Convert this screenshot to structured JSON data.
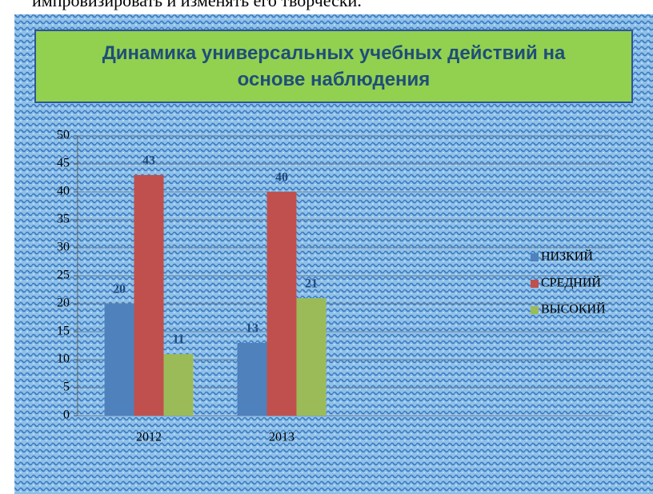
{
  "header_text": "импровизировать и изменять его творчески.",
  "chart_data": {
    "type": "bar",
    "title": "Динамика универсальных учебных действий на основе наблюдения",
    "categories": [
      "2012",
      "2013"
    ],
    "series": [
      {
        "name": "НИЗКИЙ",
        "color": "#4f81bd",
        "values": [
          20,
          13
        ]
      },
      {
        "name": "СРЕДНИЙ",
        "color": "#c0504d",
        "values": [
          43,
          40
        ]
      },
      {
        "name": "ВЫСОКИЙ",
        "color": "#9bbb59",
        "values": [
          11,
          21
        ]
      }
    ],
    "ylim": [
      0,
      50
    ],
    "yticks": [
      0,
      5,
      10,
      15,
      20,
      25,
      30,
      35,
      40,
      45,
      50
    ],
    "grid": true,
    "legend": "right"
  }
}
